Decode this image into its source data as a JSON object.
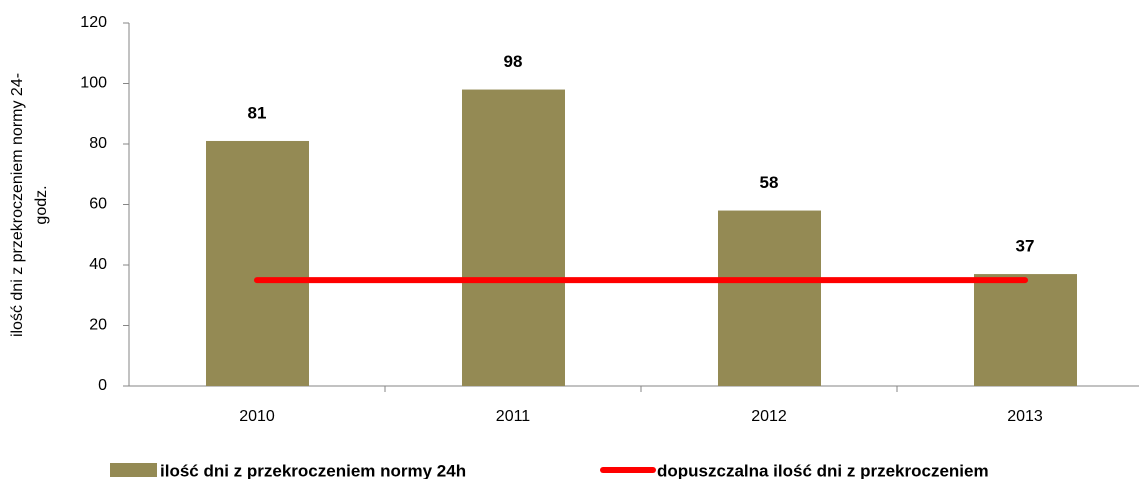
{
  "chart_data": {
    "type": "bar",
    "ylabel": [
      "ilość dni z przekroczeniem normy 24-",
      "godz."
    ],
    "categories": [
      "2010",
      "2011",
      "2012",
      "2013"
    ],
    "series": [
      {
        "name": "ilość dni z przekroczeniem normy 24h",
        "type": "bar",
        "color": "#948a54",
        "values": [
          81,
          98,
          58,
          37
        ]
      },
      {
        "name": "dopuszczalna ilość dni z przekroczeniem",
        "type": "line",
        "color": "#ff0000",
        "values": [
          35,
          35,
          35,
          35
        ]
      }
    ],
    "ylim": [
      0,
      120
    ],
    "yticks": [
      0,
      20,
      40,
      60,
      80,
      100,
      120
    ],
    "grid": false
  }
}
